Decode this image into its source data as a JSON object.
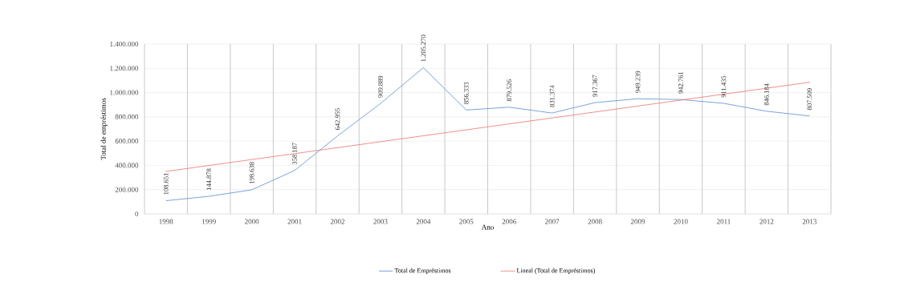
{
  "chart_data": {
    "type": "line",
    "xlabel": "Ano",
    "ylabel": "Total de empréstimos",
    "categories": [
      "1998",
      "1999",
      "2000",
      "2001",
      "2002",
      "2003",
      "2004",
      "2005",
      "2006",
      "2007",
      "2008",
      "2009",
      "2010",
      "2011",
      "2012",
      "2013"
    ],
    "series": [
      {
        "name": "Total de Empréstimos",
        "color": "#5b8bd0",
        "line_style": "solid",
        "values": [
          108651,
          144878,
          198638,
          358187,
          642955,
          909889,
          1205270,
          856333,
          879526,
          831374,
          917367,
          949239,
          942761,
          911435,
          846184,
          807509
        ],
        "value_labels": [
          "108.651",
          "144.878",
          "198.638",
          "358.187",
          "642.955",
          "909.889",
          "1.205.270",
          "856.333",
          "879.526",
          "831.374",
          "917.367",
          "949.239",
          "942.761",
          "911.435",
          "846.184",
          "807.509"
        ]
      },
      {
        "name": "Lineal (Total de Empréstimos)",
        "color": "#e8605c",
        "line_style": "dotted",
        "values": [
          350000,
          399000,
          448000,
          497000,
          546000,
          595000,
          644000,
          693000,
          742000,
          791000,
          840000,
          889000,
          938000,
          987000,
          1036000,
          1085000
        ]
      }
    ],
    "ylim": [
      0,
      1400000
    ],
    "yticks": [
      {
        "value": 0,
        "label": "0"
      },
      {
        "value": 200000,
        "label": "200.000"
      },
      {
        "value": 400000,
        "label": "400.000"
      },
      {
        "value": 600000,
        "label": "600.000"
      },
      {
        "value": 800000,
        "label": "800.000"
      },
      {
        "value": 1000000,
        "label": "1.000.000"
      },
      {
        "value": 1200000,
        "label": "1.200.000"
      },
      {
        "value": 1400000,
        "label": "1.400.000"
      }
    ],
    "grid": true,
    "legend": "bottom",
    "marker": "none"
  }
}
